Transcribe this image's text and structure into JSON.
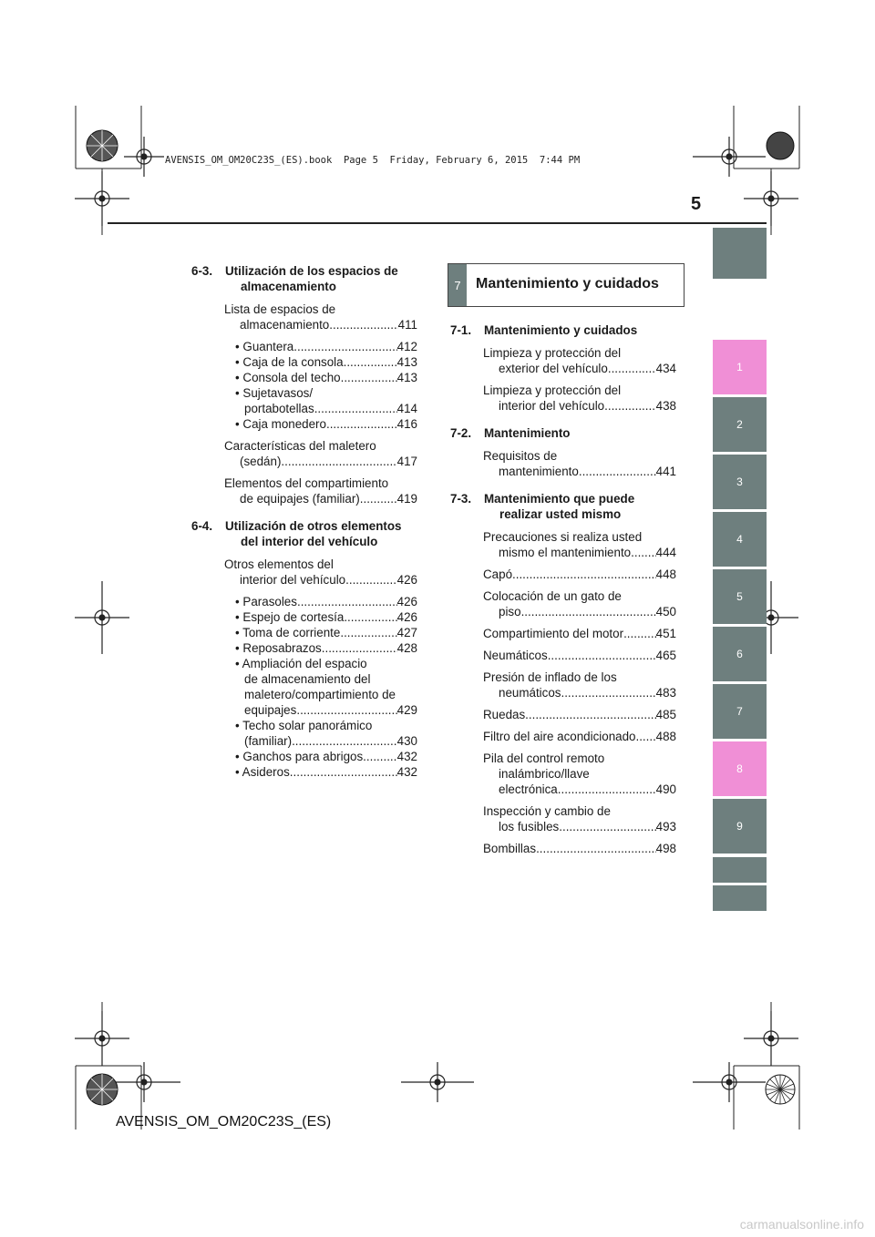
{
  "header": {
    "file_line": "AVENSIS_OM_OM20C23S_(ES).book  Page 5  Friday, February 6, 2015  7:44 PM",
    "page_number": "5"
  },
  "left_column": {
    "sections": [
      {
        "number": "6-3.",
        "title_lines": [
          "Utilización de los espacios de",
          "almacenamiento"
        ],
        "entries": [
          {
            "lines": [
              "Lista de espacios de"
            ],
            "last": "almacenamiento",
            "page": "411"
          },
          {
            "sub": true,
            "lines": [],
            "last": "• Guantera",
            "page": "412"
          },
          {
            "sub": true,
            "lines": [],
            "last": "• Caja de la consola",
            "page": "413"
          },
          {
            "sub": true,
            "lines": [],
            "last": "• Consola del techo",
            "page": "413"
          },
          {
            "sub": true,
            "lines": [
              "• Sujetavasos/"
            ],
            "last": "portabotellas",
            "page": "414"
          },
          {
            "sub": true,
            "lines": [],
            "last": "• Caja monedero",
            "page": "416"
          },
          {
            "lines": [
              "Características del maletero"
            ],
            "last": "(sedán)",
            "page": "417"
          },
          {
            "lines": [
              "Elementos del compartimiento"
            ],
            "last": "de equipajes (familiar)",
            "page": "419"
          }
        ]
      },
      {
        "number": "6-4.",
        "title_lines": [
          "Utilización de otros elementos",
          "del interior del vehículo"
        ],
        "entries": [
          {
            "lines": [
              "Otros elementos del"
            ],
            "last": "interior del vehículo",
            "page": "426"
          },
          {
            "sub": true,
            "lines": [],
            "last": "• Parasoles",
            "page": "426"
          },
          {
            "sub": true,
            "lines": [],
            "last": "• Espejo de cortesía",
            "page": "426"
          },
          {
            "sub": true,
            "lines": [],
            "last": "• Toma de corriente",
            "page": "427"
          },
          {
            "sub": true,
            "lines": [],
            "last": "• Reposabrazos",
            "page": "428"
          },
          {
            "sub": true,
            "lines": [
              "• Ampliación del espacio",
              "de almacenamiento del",
              "maletero/compartimiento de"
            ],
            "last": "equipajes",
            "page": "429"
          },
          {
            "sub": true,
            "lines": [
              "• Techo solar panorámico"
            ],
            "last": "(familiar)",
            "page": "430"
          },
          {
            "sub": true,
            "lines": [],
            "last": "• Ganchos para abrigos",
            "page": "432"
          },
          {
            "sub": true,
            "lines": [],
            "last": "• Asideros",
            "page": "432"
          }
        ]
      }
    ]
  },
  "chapter": {
    "number": "7",
    "title": "Mantenimiento y cuidados"
  },
  "right_column": {
    "sections": [
      {
        "number": "7-1.",
        "title_lines": [
          "Mantenimiento y cuidados"
        ],
        "entries": [
          {
            "lines": [
              "Limpieza y protección del"
            ],
            "last": "exterior del vehículo",
            "page": "434"
          },
          {
            "lines": [
              "Limpieza y protección del"
            ],
            "last": "interior del vehículo",
            "page": "438"
          }
        ]
      },
      {
        "number": "7-2.",
        "title_lines": [
          "Mantenimiento"
        ],
        "entries": [
          {
            "lines": [
              "Requisitos de"
            ],
            "last": "mantenimiento",
            "page": "441"
          }
        ]
      },
      {
        "number": "7-3.",
        "title_lines": [
          "Mantenimiento que puede",
          "realizar usted mismo"
        ],
        "entries": [
          {
            "lines": [
              "Precauciones si realiza usted"
            ],
            "last": "mismo el mantenimiento",
            "page": "444"
          },
          {
            "lines": [],
            "last": "Capó",
            "page": "448"
          },
          {
            "lines": [
              "Colocación de un gato de"
            ],
            "last": "piso",
            "page": "450"
          },
          {
            "lines": [],
            "last": "Compartimiento del motor",
            "page": "451"
          },
          {
            "lines": [],
            "last": "Neumáticos",
            "page": "465"
          },
          {
            "lines": [
              "Presión de inflado de los"
            ],
            "last": "neumáticos",
            "page": "483"
          },
          {
            "lines": [],
            "last": "Ruedas",
            "page": "485"
          },
          {
            "lines": [],
            "last": "Filtro del aire acondicionado",
            "page": "488"
          },
          {
            "lines": [
              "Pila del control remoto",
              "inalámbrico/llave"
            ],
            "last": "electrónica",
            "page": "490"
          },
          {
            "lines": [
              "Inspección y cambio de"
            ],
            "last": "los fusibles",
            "page": "493"
          },
          {
            "lines": [],
            "last": "Bombillas",
            "page": "498"
          }
        ]
      }
    ]
  },
  "side_tabs": [
    {
      "label": "",
      "color": "#6e7f7e"
    },
    {
      "label": "1",
      "color": "#f08fd6"
    },
    {
      "label": "2",
      "color": "#6e7f7e"
    },
    {
      "label": "3",
      "color": "#6e7f7e"
    },
    {
      "label": "4",
      "color": "#6e7f7e"
    },
    {
      "label": "5",
      "color": "#6e7f7e"
    },
    {
      "label": "6",
      "color": "#6e7f7e"
    },
    {
      "label": "7",
      "color": "#6e7f7e"
    },
    {
      "label": "8",
      "color": "#f08fd6"
    },
    {
      "label": "9",
      "color": "#6e7f7e"
    },
    {
      "label": "",
      "color": "#6e7f7e"
    },
    {
      "label": "",
      "color": "#6e7f7e"
    }
  ],
  "footer": {
    "code": "AVENSIS_OM_OM20C23S_(ES)"
  },
  "watermark": "carmanualsonline.info"
}
